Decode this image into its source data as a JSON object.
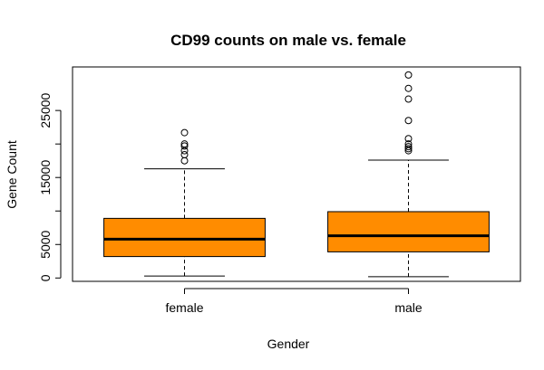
{
  "chart_data": {
    "type": "boxplot",
    "title": "CD99 counts on male vs. female",
    "xlabel": "Gender",
    "ylabel": "Gene Count",
    "categories": [
      "female",
      "male"
    ],
    "y_ticks": [
      0,
      5000,
      15000,
      25000
    ],
    "ylim": [
      -500,
      31500
    ],
    "box_color": "#ff8c00",
    "grid": false,
    "legend": "none",
    "boxes": [
      {
        "name": "female",
        "whisker_low": 300,
        "q1": 3200,
        "median": 5800,
        "q3": 8900,
        "whisker_high": 16300,
        "outliers": [
          17500,
          18400,
          19000,
          19700,
          20000,
          21700
        ]
      },
      {
        "name": "male",
        "whisker_low": 200,
        "q1": 3900,
        "median": 6300,
        "q3": 9900,
        "whisker_high": 17600,
        "outliers": [
          19000,
          19300,
          19600,
          20000,
          20800,
          23500,
          26700,
          28300,
          30300
        ]
      }
    ]
  }
}
